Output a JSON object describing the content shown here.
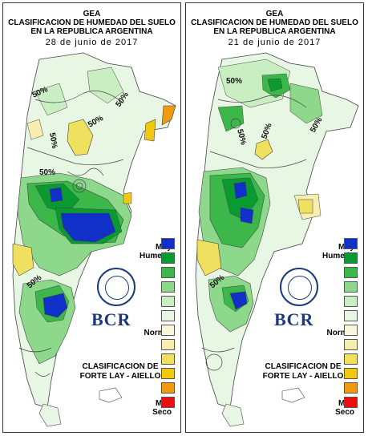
{
  "panels": [
    {
      "header": [
        "GEA",
        "CLASIFICACION DE HUMEDAD DEL SUELO",
        "EN LA REPUBLICA ARGENTINA"
      ],
      "date": "28 de junio de 2017",
      "contour_labels": [
        "50%",
        "50%",
        "50%",
        "50%",
        "50%",
        "50%"
      ]
    },
    {
      "header": [
        "GEA",
        "CLASIFICACION DE HUMEDAD DEL SUELO",
        "EN LA REPUBLICA ARGENTINA"
      ],
      "date": "21 de junio de 2017",
      "contour_labels": [
        "50%",
        "50%",
        "50%",
        "50%",
        "50%"
      ]
    }
  ],
  "legend": {
    "top_label_1": "Muy",
    "top_label_2": "Humedo",
    "mid_label": "Normal",
    "bottom_label_1": "Muy",
    "bottom_label_2": "Seco",
    "colors": [
      "#1030c8",
      "#0a9a32",
      "#3cb84a",
      "#8ed88c",
      "#c8eec2",
      "#e8f6e4",
      "#fbf7dc",
      "#f6eeb0",
      "#f0e060",
      "#f0c810",
      "#f09a10",
      "#e81010"
    ]
  },
  "logo": "BCR",
  "classification": [
    "CLASIFICACION DE",
    "FORTE LAY - AIELLO"
  ]
}
